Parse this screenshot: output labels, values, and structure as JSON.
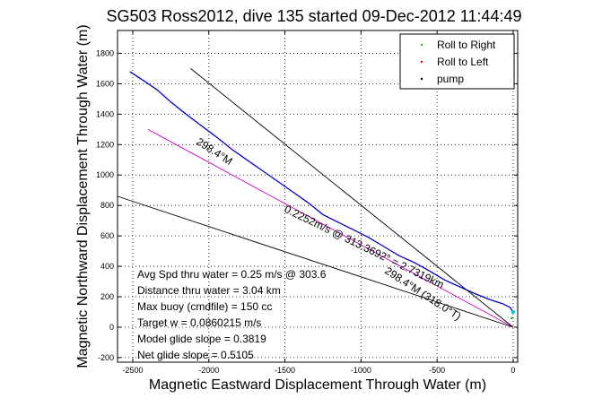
{
  "chart_data": {
    "type": "line",
    "title": "SG503 Ross2012, dive 135 started 09-Dec-2012 11:44:49",
    "xlabel": "Magnetic Eastward Displacement Through Water (m)",
    "ylabel": "Magnetic Northward Displacement Through Water (m)",
    "xlim": [
      -2600,
      30
    ],
    "ylim": [
      -230,
      1950
    ],
    "x_ticks": [
      -2500,
      -2000,
      -1500,
      -1000,
      -500,
      0
    ],
    "y_ticks": [
      -200,
      0,
      200,
      400,
      600,
      800,
      1000,
      1200,
      1400,
      1600,
      1800
    ],
    "grid": true,
    "legend_position": "top-right",
    "legend": [
      {
        "label": "Roll to Right",
        "color": "#00cc00"
      },
      {
        "label": "Roll to Left",
        "color": "#ff0000"
      },
      {
        "label": "pump",
        "color": "#000000"
      }
    ],
    "series": [
      {
        "color": "#0000cc",
        "x": [
          -2520,
          -2420,
          -2340,
          -2250,
          -2150,
          -2050,
          -1950,
          -1850,
          -1750,
          -1650,
          -1550,
          -1450,
          -1350,
          -1250,
          -1150,
          -1050,
          -950,
          -850,
          -750,
          -650,
          -550,
          -450,
          -350,
          -250,
          -150,
          -70,
          -20,
          0
        ],
        "y": [
          1680,
          1615,
          1560,
          1480,
          1400,
          1325,
          1250,
          1170,
          1100,
          1030,
          960,
          890,
          820,
          740,
          690,
          640,
          590,
          530,
          470,
          425,
          370,
          310,
          265,
          220,
          180,
          155,
          130,
          100
        ]
      },
      {
        "color": "#cc00cc",
        "x": [
          -2400,
          0
        ],
        "y": [
          1300,
          0
        ]
      },
      {
        "color": "#000000",
        "x": [
          -2120,
          0
        ],
        "y": [
          1700,
          0
        ]
      },
      {
        "color": "#000000",
        "x": [
          -2600,
          0
        ],
        "y": [
          860,
          0
        ]
      }
    ],
    "annotations": [
      "298.4°M",
      "0.2252m/s @ 313.3692° = 2.7319km",
      "298.4°M (318.0°T)"
    ],
    "stats": [
      "Avg Spd thru water =  0.25 m/s @ 303.6  ",
      "Distance thru water = 3.04 km",
      "Max buoy (cmdfile) = 150 cc",
      "Target w = 0.0860215 m/s",
      "Model glide slope = 0.3819",
      "Net glide slope = 0.5105"
    ]
  }
}
